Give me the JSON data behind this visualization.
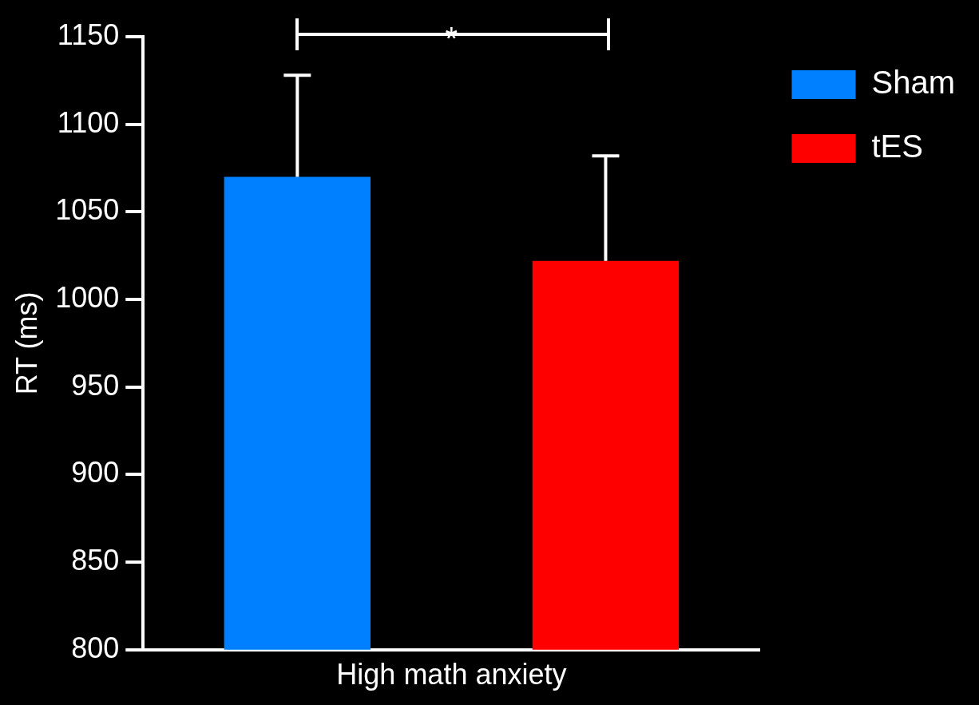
{
  "chart_data": {
    "type": "bar",
    "xlabel": "High math anxiety",
    "ylabel": "RT (ms)",
    "categories": [
      null,
      null
    ],
    "series": [
      {
        "name": "Sham",
        "color": "#0080ff",
        "values": [
          1070,
          null
        ],
        "errors": [
          [
            1070,
            1128
          ],
          null
        ]
      },
      {
        "name": "tES",
        "color": "#ff0000",
        "values": [
          null,
          1022
        ],
        "errors": [
          null,
          [
            1022,
            1082
          ]
        ]
      }
    ],
    "ylim": [
      800,
      1150
    ],
    "yticks": [
      800,
      850,
      900,
      950,
      1000,
      1050,
      1100,
      1150
    ],
    "annotations": [
      "*"
    ],
    "grid": false,
    "legend": "top right"
  }
}
